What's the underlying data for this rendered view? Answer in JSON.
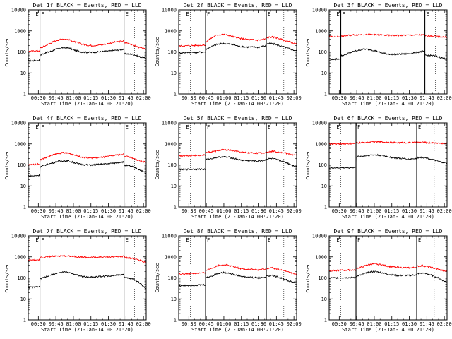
{
  "figure": {
    "colors": {
      "events": "#000000",
      "lld": "#ff0000",
      "axis": "#000000"
    },
    "x_tick_labels": [
      "00:30",
      "00:45",
      "01:00",
      "01:15",
      "01:30",
      "01:45",
      "02:00"
    ],
    "y_tick_labels": [
      "1",
      "10",
      "100",
      "1000",
      "10000"
    ],
    "marker_labels": [
      "E",
      "F",
      "E"
    ]
  },
  "chart_data": [
    {
      "type": "line",
      "title": "Det 1f BLACK = Events, RED = LLD",
      "xlabel": "Start Time (21-Jan-14 00:21:20)",
      "ylabel": "Counts/sec",
      "ylim": [
        1,
        10000
      ],
      "yscale": "log",
      "x_unit": "minutes after 00:21:20",
      "xlim": [
        0,
        101
      ],
      "gaps": [
        [
          0,
          10
        ],
        [
          82,
          91
        ]
      ],
      "markers": {
        "E_start": 10,
        "F": 10,
        "E_end": 82,
        "end_dotted": 91
      },
      "x": [
        0,
        5,
        9.9,
        10.1,
        15,
        20,
        25,
        30,
        35,
        40,
        45,
        50,
        55,
        60,
        65,
        70,
        75,
        81.9,
        82.1,
        86,
        90,
        95,
        101
      ],
      "series": [
        {
          "name": "Events",
          "color": "#000000",
          "values": [
            38,
            38,
            40,
            70,
            90,
            110,
            140,
            160,
            150,
            120,
            100,
            95,
            95,
            100,
            105,
            110,
            120,
            135,
            80,
            80,
            75,
            60,
            48
          ]
        },
        {
          "name": "LLD",
          "color": "#ff0000",
          "values": [
            105,
            110,
            115,
            150,
            200,
            280,
            360,
            420,
            380,
            300,
            240,
            210,
            200,
            210,
            230,
            260,
            300,
            330,
            270,
            260,
            210,
            160,
            130
          ]
        }
      ]
    },
    {
      "type": "line",
      "title": "Det 2f BLACK = Events, RED = LLD",
      "xlabel": "Start Time (21-Jan-14 00:21:20)",
      "ylabel": "Counts/sec",
      "ylim": [
        1,
        10000
      ],
      "yscale": "log",
      "x_unit": "minutes after 00:21:20",
      "xlim": [
        0,
        101
      ],
      "gaps": [
        [
          0,
          23
        ],
        [
          75,
          90
        ]
      ],
      "markers": {
        "E_start": 10,
        "F": 23,
        "E_end": 75,
        "end_dotted": 90
      },
      "x": [
        0,
        5,
        10,
        15,
        22.9,
        23.1,
        28,
        33,
        38,
        43,
        48,
        53,
        58,
        63,
        68,
        74.9,
        75.1,
        80,
        85,
        90,
        95,
        101
      ],
      "series": [
        {
          "name": "Events",
          "color": "#000000",
          "values": [
            90,
            92,
            95,
            95,
            100,
            130,
            180,
            230,
            250,
            240,
            210,
            180,
            170,
            170,
            165,
            200,
            240,
            250,
            210,
            170,
            140,
            110
          ]
        },
        {
          "name": "LLD",
          "color": "#ff0000",
          "values": [
            190,
            195,
            200,
            205,
            210,
            300,
            450,
            650,
            680,
            620,
            500,
            430,
            400,
            380,
            360,
            420,
            480,
            520,
            450,
            360,
            300,
            230
          ]
        }
      ]
    },
    {
      "type": "line",
      "title": "Det 3f BLACK = Events, RED = LLD",
      "xlabel": "Start Time (21-Jan-14 00:21:20)",
      "ylabel": "Counts/sec",
      "ylim": [
        1,
        10000
      ],
      "yscale": "log",
      "x_unit": "minutes after 00:21:20",
      "xlim": [
        0,
        101
      ],
      "gaps": [
        [
          0,
          10
        ],
        [
          82,
          91
        ]
      ],
      "markers": {
        "E_start": 10,
        "F": 10,
        "E_end": 82,
        "end_dotted": 91
      },
      "x": [
        0,
        5,
        9.9,
        10.1,
        15,
        20,
        25,
        30,
        35,
        40,
        45,
        50,
        55,
        60,
        65,
        70,
        75,
        81.9,
        82.1,
        86,
        90,
        95,
        101
      ],
      "series": [
        {
          "name": "Events",
          "color": "#000000",
          "values": [
            45,
            45,
            48,
            65,
            80,
            100,
            120,
            135,
            130,
            110,
            90,
            80,
            75,
            78,
            80,
            85,
            95,
            110,
            70,
            68,
            65,
            55,
            45
          ]
        },
        {
          "name": "LLD",
          "color": "#ff0000",
          "values": [
            520,
            530,
            540,
            560,
            600,
            640,
            660,
            680,
            670,
            650,
            630,
            610,
            600,
            610,
            620,
            630,
            640,
            650,
            600,
            590,
            570,
            530,
            500
          ]
        }
      ]
    },
    {
      "type": "line",
      "title": "Det 4f BLACK = Events, RED = LLD",
      "xlabel": "Start Time (21-Jan-14 00:21:20)",
      "ylabel": "Counts/sec",
      "ylim": [
        1,
        10000
      ],
      "yscale": "log",
      "x_unit": "minutes after 00:21:20",
      "xlim": [
        0,
        101
      ],
      "gaps": [
        [
          0,
          10
        ],
        [
          82,
          91
        ]
      ],
      "markers": {
        "E_start": 10,
        "F": 10,
        "E_end": 82,
        "end_dotted": 91
      },
      "x": [
        0,
        5,
        9.9,
        10.1,
        15,
        20,
        25,
        30,
        35,
        40,
        45,
        50,
        55,
        60,
        65,
        70,
        75,
        81.9,
        82.1,
        86,
        90,
        95,
        101
      ],
      "series": [
        {
          "name": "Events",
          "color": "#000000",
          "values": [
            30,
            30,
            32,
            80,
            100,
            120,
            145,
            160,
            150,
            125,
            105,
            100,
            100,
            105,
            110,
            115,
            125,
            140,
            95,
            90,
            80,
            60,
            40
          ]
        },
        {
          "name": "LLD",
          "color": "#ff0000",
          "values": [
            100,
            105,
            110,
            170,
            220,
            280,
            340,
            380,
            350,
            290,
            240,
            220,
            215,
            220,
            235,
            260,
            290,
            320,
            260,
            250,
            200,
            160,
            130
          ]
        }
      ]
    },
    {
      "type": "line",
      "title": "Det 5f BLACK = Events, RED = LLD",
      "xlabel": "Start Time (21-Jan-14 00:21:20)",
      "ylabel": "Counts/sec",
      "ylim": [
        1,
        10000
      ],
      "yscale": "log",
      "x_unit": "minutes after 00:21:20",
      "xlim": [
        0,
        101
      ],
      "gaps": [
        [
          0,
          23
        ],
        [
          75,
          90
        ]
      ],
      "markers": {
        "E_start": 10,
        "F": 23,
        "E_end": 75,
        "end_dotted": 90
      },
      "x": [
        0,
        5,
        10,
        15,
        22.9,
        23.1,
        28,
        33,
        38,
        43,
        48,
        53,
        58,
        63,
        68,
        74.9,
        75.1,
        80,
        85,
        90,
        95,
        101
      ],
      "series": [
        {
          "name": "Events",
          "color": "#000000",
          "values": [
            60,
            60,
            62,
            62,
            62,
            180,
            200,
            230,
            240,
            230,
            200,
            170,
            160,
            155,
            150,
            170,
            190,
            200,
            170,
            140,
            110,
            80
          ]
        },
        {
          "name": "LLD",
          "color": "#ff0000",
          "values": [
            270,
            275,
            280,
            285,
            290,
            380,
            420,
            480,
            520,
            500,
            450,
            400,
            380,
            370,
            360,
            380,
            420,
            450,
            420,
            380,
            330,
            280
          ]
        }
      ]
    },
    {
      "type": "line",
      "title": "Det 6f BLACK = Events, RED = LLD",
      "xlabel": "Start Time (21-Jan-14 00:21:20)",
      "ylabel": "Counts/sec",
      "ylim": [
        1,
        10000
      ],
      "yscale": "log",
      "x_unit": "minutes after 00:21:20",
      "xlim": [
        0,
        101
      ],
      "gaps": [
        [
          0,
          23
        ],
        [
          75,
          90
        ]
      ],
      "markers": {
        "E_start": 10,
        "F": 23,
        "E_end": 75,
        "end_dotted": 90
      },
      "x": [
        0,
        5,
        10,
        15,
        22.9,
        23.1,
        28,
        33,
        38,
        43,
        48,
        53,
        58,
        63,
        68,
        74.9,
        75.1,
        80,
        85,
        90,
        95,
        101
      ],
      "series": [
        {
          "name": "Events",
          "color": "#000000",
          "values": [
            70,
            72,
            72,
            73,
            75,
            240,
            260,
            280,
            300,
            290,
            260,
            230,
            210,
            200,
            190,
            200,
            220,
            230,
            200,
            170,
            140,
            120
          ]
        },
        {
          "name": "LLD",
          "color": "#ff0000",
          "values": [
            1000,
            1000,
            1010,
            1020,
            1030,
            1100,
            1150,
            1200,
            1250,
            1240,
            1200,
            1170,
            1150,
            1150,
            1140,
            1150,
            1160,
            1170,
            1140,
            1100,
            1080,
            1050
          ]
        }
      ]
    },
    {
      "type": "line",
      "title": "Det 7f BLACK = Events, RED = LLD",
      "xlabel": "Start Time (21-Jan-14 00:21:20)",
      "ylabel": "Counts/sec",
      "ylim": [
        1,
        10000
      ],
      "yscale": "log",
      "x_unit": "minutes after 00:21:20",
      "xlim": [
        0,
        101
      ],
      "gaps": [
        [
          0,
          10
        ],
        [
          82,
          91
        ]
      ],
      "markers": {
        "E_start": 10,
        "F": 10,
        "E_end": 82,
        "end_dotted": 91
      },
      "x": [
        0,
        5,
        9.9,
        10.1,
        15,
        20,
        25,
        30,
        35,
        40,
        45,
        50,
        55,
        60,
        65,
        70,
        75,
        81.9,
        82.1,
        86,
        90,
        95,
        101
      ],
      "series": [
        {
          "name": "Events",
          "color": "#000000",
          "values": [
            35,
            36,
            38,
            90,
            110,
            140,
            170,
            190,
            180,
            150,
            120,
            110,
            110,
            115,
            120,
            125,
            135,
            150,
            110,
            100,
            90,
            60,
            30
          ]
        },
        {
          "name": "LLD",
          "color": "#ff0000",
          "values": [
            680,
            700,
            720,
            900,
            1000,
            1050,
            1100,
            1120,
            1100,
            1050,
            980,
            950,
            940,
            960,
            980,
            1000,
            1020,
            1050,
            950,
            900,
            850,
            700,
            550
          ]
        }
      ]
    },
    {
      "type": "line",
      "title": "Det 8f BLACK = Events, RED = LLD",
      "xlabel": "Start Time (21-Jan-14 00:21:20)",
      "ylabel": "Counts/sec",
      "ylim": [
        1,
        10000
      ],
      "yscale": "log",
      "x_unit": "minutes after 00:21:20",
      "xlim": [
        0,
        101
      ],
      "gaps": [
        [
          0,
          23
        ],
        [
          75,
          90
        ]
      ],
      "markers": {
        "E_start": 10,
        "F": 23,
        "E_end": 75,
        "end_dotted": 90
      },
      "x": [
        0,
        5,
        10,
        15,
        22.9,
        23.1,
        28,
        33,
        38,
        43,
        48,
        53,
        58,
        63,
        68,
        74.9,
        75.1,
        80,
        85,
        90,
        95,
        101
      ],
      "series": [
        {
          "name": "Events",
          "color": "#000000",
          "values": [
            42,
            43,
            44,
            45,
            46,
            100,
            120,
            160,
            180,
            170,
            140,
            120,
            110,
            105,
            100,
            110,
            120,
            130,
            110,
            90,
            70,
            55
          ]
        },
        {
          "name": "LLD",
          "color": "#ff0000",
          "values": [
            150,
            155,
            160,
            165,
            170,
            230,
            280,
            380,
            420,
            400,
            330,
            280,
            260,
            250,
            240,
            260,
            280,
            300,
            260,
            220,
            180,
            140
          ]
        }
      ]
    },
    {
      "type": "line",
      "title": "Det 9f BLACK = Events, RED = LLD",
      "xlabel": "Start Time (21-Jan-14 00:21:20)",
      "ylabel": "Counts/sec",
      "ylim": [
        1,
        10000
      ],
      "yscale": "log",
      "x_unit": "minutes after 00:21:20",
      "xlim": [
        0,
        101
      ],
      "gaps": [
        [
          0,
          23
        ],
        [
          75,
          90
        ]
      ],
      "markers": {
        "E_start": 10,
        "F": 23,
        "E_end": 75,
        "end_dotted": 90
      },
      "x": [
        0,
        5,
        10,
        15,
        22.9,
        23.1,
        28,
        33,
        38,
        43,
        48,
        53,
        58,
        63,
        68,
        74.9,
        75.1,
        80,
        85,
        90,
        95,
        101
      ],
      "series": [
        {
          "name": "Events",
          "color": "#000000",
          "values": [
            100,
            100,
            102,
            103,
            105,
            120,
            140,
            180,
            200,
            190,
            160,
            140,
            130,
            130,
            130,
            140,
            160,
            170,
            150,
            120,
            90,
            60
          ]
        },
        {
          "name": "LLD",
          "color": "#ff0000",
          "values": [
            220,
            225,
            230,
            235,
            240,
            280,
            330,
            420,
            460,
            440,
            380,
            340,
            320,
            310,
            300,
            320,
            360,
            380,
            340,
            290,
            240,
            200
          ]
        }
      ]
    }
  ]
}
